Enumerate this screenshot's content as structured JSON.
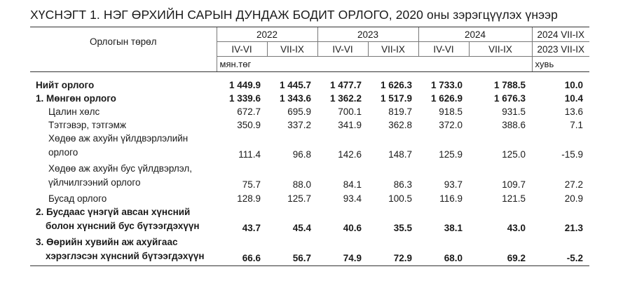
{
  "title": "ХҮСНЭГТ 1.   НЭГ ӨРХИЙН САРЫН ДУНДАЖ БОДИТ ОРЛОГО, 2020 оны зэрэгцүүлэх үнээр",
  "header": {
    "row_label": "Орлогын төрөл",
    "years": [
      "2022",
      "2023",
      "2024"
    ],
    "quarters": [
      "IV-VI",
      "VII-IX",
      "IV-VI",
      "VII-IX",
      "IV-VI",
      "VII-IX"
    ],
    "compare_top": "2024 VII-IX",
    "compare_bottom": "2023 VII-IX",
    "unit_left": "мян.төг",
    "unit_right": "хувь"
  },
  "rows": [
    {
      "label": "Нийт орлого",
      "values": [
        "1 449.9",
        "1 445.7",
        "1 477.7",
        "1 626.3",
        "1 733.0",
        "1 788.5",
        "10.0"
      ]
    },
    {
      "label": "1. Мөнгөн орлого",
      "values": [
        "1 339.6",
        "1 343.6",
        "1 362.2",
        "1 517.9",
        "1 626.9",
        "1 676.3",
        "10.4"
      ]
    },
    {
      "label": "Цалин хөлс",
      "values": [
        "672.7",
        "695.9",
        "700.1",
        "819.7",
        "918.5",
        "931.5",
        "13.6"
      ]
    },
    {
      "label": "Тэтгэвэр, тэтгэмж",
      "values": [
        "350.9",
        "337.2",
        "341.9",
        "362.8",
        "372.0",
        "388.6",
        "7.1"
      ]
    },
    {
      "label1": "Хөдөө аж ахуйн үйлдвэрлэлийн",
      "label2": "орлого",
      "values": [
        "111.4",
        "96.8",
        "142.6",
        "148.7",
        "125.9",
        "125.0",
        "-15.9"
      ]
    },
    {
      "label1": "Хөдөө аж ахуйн бус үйлдвэрлэл,",
      "label2": "үйлчилгээний орлого",
      "values": [
        "75.7",
        "88.0",
        "84.1",
        "86.3",
        "93.7",
        "109.7",
        "27.2"
      ]
    },
    {
      "label": "Бусад орлого",
      "values": [
        "128.9",
        "125.7",
        "93.4",
        "100.5",
        "116.9",
        "121.5",
        "20.9"
      ]
    },
    {
      "label1": "2. Бусдаас үнэгүй авсан хүнсний",
      "label2": "болон хүнсний бус бүтээгдэхүүн",
      "values": [
        "43.7",
        "45.4",
        "40.6",
        "35.5",
        "38.1",
        "43.0",
        "21.3"
      ]
    },
    {
      "label1": "3. Өөрийн хувийн аж ахуйгаас",
      "label2": "хэрэглэсэн хүнсний бүтээгдэхүүн",
      "values": [
        "66.6",
        "56.7",
        "74.9",
        "72.9",
        "68.0",
        "69.2",
        "-5.2"
      ]
    }
  ]
}
